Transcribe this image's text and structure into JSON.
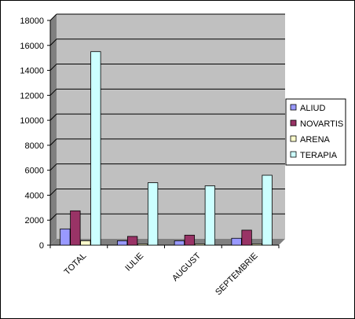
{
  "chart_data": {
    "type": "bar",
    "categories": [
      "TOTAL",
      "IULIE",
      "AUGUST",
      "SEPTEMBRIE"
    ],
    "series": [
      {
        "name": "ALIUD",
        "values": [
          1300,
          350,
          350,
          550
        ],
        "color": "#9999ff"
      },
      {
        "name": "NOVARTIS",
        "values": [
          2750,
          700,
          800,
          1200
        ],
        "color": "#993366"
      },
      {
        "name": "ARENA",
        "values": [
          350,
          100,
          100,
          100
        ],
        "color": "#ffffcc"
      },
      {
        "name": "TERAPIA",
        "values": [
          15500,
          5000,
          4750,
          5600
        ],
        "color": "#ccffff"
      }
    ],
    "ylim": [
      0,
      18000
    ],
    "yticks": [
      0,
      2000,
      4000,
      6000,
      8000,
      10000,
      12000,
      14000,
      16000,
      18000
    ],
    "grid": true,
    "legend": "right",
    "plot_background": "#c0c0c0"
  }
}
